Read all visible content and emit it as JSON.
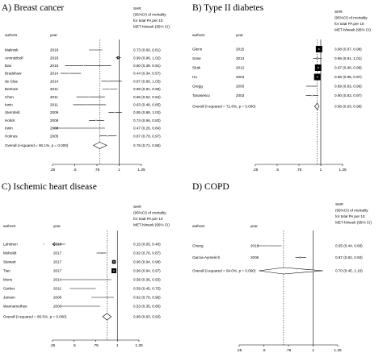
{
  "figure": {
    "panels": [
      {
        "title": "A) Breast cancer",
        "header": {
          "col1": "authors",
          "col2": "year",
          "shr": [
            "SHR",
            "(95%CI) of mortality",
            "for total PA per 10",
            "MET-h/week (95% CI)"
          ]
        },
        "rows": [
          {
            "author": "Malinisk",
            "year": "2018",
            "est": "0.73 (0.66, 0.81)"
          },
          {
            "author": "Ammitzboll",
            "year": "2018",
            "est": "0.99 (0.96, 1.02)"
          },
          {
            "author": "Bao",
            "year": "2015",
            "est": "0.60 (0.39, 0.91)"
          },
          {
            "author": "Bradshaw",
            "year": "2014",
            "est": "0.44 (0.34, 0.57)"
          },
          {
            "author": "de Glas",
            "year": "2014",
            "est": "0.87 (0.80, 1.03)"
          },
          {
            "author": "Bertram",
            "year": "2011",
            "est": "0.89 (0.81, 0.98)"
          },
          {
            "author": "Chen",
            "year": "2011",
            "est": "0.66 (0.52, 0.84)"
          },
          {
            "author": "Irwin",
            "year": "2011",
            "est": "0.63 (0.48, 0.85)"
          },
          {
            "author": "Sternfeld",
            "year": "2009",
            "est": "0.95 (0.88, 1.03)"
          },
          {
            "author": "Holick",
            "year": "2008",
            "est": "0.74 (0.66, 0.83)"
          },
          {
            "author": "Irwin",
            "year": "2008",
            "est": "0.47 (0.26, 0.84)"
          },
          {
            "author": "Holmes",
            "year": "2005",
            "est": "0.87 (0.78, 0.97)"
          }
        ],
        "overall": {
          "label": "Overall  (I-squared = 90.1%, p = 0.000)",
          "est": "0.78 (0.71, 0.86)"
        },
        "axis_ticks": [
          ".25",
          ".5",
          ".75",
          "1",
          "1.25"
        ]
      },
      {
        "title": "B) Type II diabetes",
        "header": {
          "col1": "authors",
          "col2": "year",
          "shr": [
            "SHR",
            "(95%CI) of mortality",
            "for total PA per 10",
            "MET-h/week (95% CI)"
          ]
        },
        "rows": [
          {
            "author": "Glenn",
            "year": "2015",
            "est": "0.98 (0.97, 0.98)"
          },
          {
            "author": "Sone",
            "year": "2013",
            "est": "0.96 (0.91, 1.01)"
          },
          {
            "author": "Sluik",
            "year": "2012",
            "est": "0.97 (0.96, 0.98)"
          },
          {
            "author": "Hu",
            "year": "2004",
            "est": "0.96 (0.95, 0.97)"
          },
          {
            "author": "Gregg",
            "year": "2003",
            "est": "0.89 (0.83, 0.96)"
          },
          {
            "author": "Tanasescu",
            "year": "2003",
            "est": "0.90 (0.83, 0.97)"
          }
        ],
        "overall": {
          "label": "Overall  (I-squared = 71.8%, p = 0.000)",
          "est": "0.96 (0.93, 0.98)"
        },
        "axis_ticks": [
          ".25",
          ".5",
          ".75",
          "1",
          "1.25"
        ]
      },
      {
        "title": "C) Ischemic heart disease",
        "header": {
          "col1": "authors",
          "col2": "year",
          "shr": [
            "SHR",
            "(95%CI) of mortality",
            "for total PA per 10",
            "MET-h/week (95% CI)"
          ]
        },
        "rows": [
          {
            "author": "Lahtinen",
            "year": "2018",
            "est": "0.15 (0.05, 0.40)"
          },
          {
            "author": "Moholdt",
            "year": "2017",
            "est": "0.82 (0.76, 0.87)"
          },
          {
            "author": "Stewart",
            "year": "2017",
            "est": "0.96 (0.94, 0.98)"
          },
          {
            "author": "Tian",
            "year": "2017",
            "est": "0.96 (0.94, 0.97)"
          },
          {
            "author": "Mons",
            "year": "2014",
            "est": "0.58 (0.36, 0.93)"
          },
          {
            "author": "Gerber",
            "year": "2011",
            "est": "0.59 (0.45, 0.75)"
          },
          {
            "author": "Jansen",
            "year": "2006",
            "est": "0.82 (0.70, 0.96)"
          },
          {
            "author": "Wannamethee",
            "year": "2000",
            "est": "0.53 (0.35, 0.80)"
          }
        ],
        "overall": {
          "label": "Overall  (I-squared = 86.5%, p = 0.000)",
          "est": "0.88 (0.83, 0.93)"
        },
        "axis_ticks": [
          ".25",
          ".5",
          ".75",
          "1",
          "1.25"
        ]
      },
      {
        "title": "D) COPD",
        "header": {
          "col1": "authors",
          "col2": "year",
          "shr": [
            "SHR",
            "(95%CI) of mortality",
            "for total PA per 10",
            "MET-h/week (95% CI)"
          ]
        },
        "rows": [
          {
            "author": "Cheng",
            "year": "2018",
            "est": "0.55 (0.44, 0.68)"
          },
          {
            "author": "Garcia-Aymerich",
            "year": "2006",
            "est": "0.87 (0.82, 0.93)"
          }
        ],
        "overall": {
          "label": "Overall  (I-squared = 94.0%, p = 0.000)",
          "est": "0.70 (0.45, 1.10)"
        },
        "axis_ticks": [
          ".25",
          ".5",
          ".75",
          "1",
          "1.25"
        ]
      }
    ]
  },
  "chart_data": [
    {
      "type": "forest",
      "title": "A) Breast cancer",
      "xlim": [
        0.25,
        1.25
      ],
      "reference_line": 1,
      "series": [
        {
          "values": [
            {
              "study": "Malinisk 2018",
              "est": 0.73,
              "lo": 0.66,
              "hi": 0.81
            },
            {
              "study": "Ammitzboll 2018",
              "est": 0.99,
              "lo": 0.96,
              "hi": 1.02
            },
            {
              "study": "Bao 2015",
              "est": 0.6,
              "lo": 0.39,
              "hi": 0.91
            },
            {
              "study": "Bradshaw 2014",
              "est": 0.44,
              "lo": 0.34,
              "hi": 0.57
            },
            {
              "study": "de Glas 2014",
              "est": 0.87,
              "lo": 0.8,
              "hi": 1.03
            },
            {
              "study": "Bertram 2011",
              "est": 0.89,
              "lo": 0.81,
              "hi": 0.98
            },
            {
              "study": "Chen 2011",
              "est": 0.66,
              "lo": 0.52,
              "hi": 0.84
            },
            {
              "study": "Irwin 2011",
              "est": 0.63,
              "lo": 0.48,
              "hi": 0.85
            },
            {
              "study": "Sternfeld 2009",
              "est": 0.95,
              "lo": 0.88,
              "hi": 1.03
            },
            {
              "study": "Holick 2008",
              "est": 0.74,
              "lo": 0.66,
              "hi": 0.83
            },
            {
              "study": "Irwin 2008",
              "est": 0.47,
              "lo": 0.26,
              "hi": 0.84
            },
            {
              "study": "Holmes 2005",
              "est": 0.87,
              "lo": 0.78,
              "hi": 0.97
            }
          ]
        }
      ],
      "overall": {
        "est": 0.78,
        "lo": 0.71,
        "hi": 0.86
      }
    },
    {
      "type": "forest",
      "title": "B) Type II diabetes",
      "xlim": [
        0.25,
        1.25
      ],
      "reference_line": 1,
      "series": [
        {
          "values": [
            {
              "study": "Glenn 2015",
              "est": 0.98,
              "lo": 0.97,
              "hi": 0.98
            },
            {
              "study": "Sone 2013",
              "est": 0.96,
              "lo": 0.91,
              "hi": 1.01
            },
            {
              "study": "Sluik 2012",
              "est": 0.97,
              "lo": 0.96,
              "hi": 0.98
            },
            {
              "study": "Hu 2004",
              "est": 0.96,
              "lo": 0.95,
              "hi": 0.97
            },
            {
              "study": "Gregg 2003",
              "est": 0.89,
              "lo": 0.83,
              "hi": 0.96
            },
            {
              "study": "Tanasescu 2003",
              "est": 0.9,
              "lo": 0.83,
              "hi": 0.97
            }
          ]
        }
      ],
      "overall": {
        "est": 0.96,
        "lo": 0.93,
        "hi": 0.98
      }
    },
    {
      "type": "forest",
      "title": "C) Ischemic heart disease",
      "xlim": [
        0.25,
        1.25
      ],
      "reference_line": 1,
      "series": [
        {
          "values": [
            {
              "study": "Lahtinen 2018",
              "est": 0.15,
              "lo": 0.05,
              "hi": 0.4
            },
            {
              "study": "Moholdt 2017",
              "est": 0.82,
              "lo": 0.76,
              "hi": 0.87
            },
            {
              "study": "Stewart 2017",
              "est": 0.96,
              "lo": 0.94,
              "hi": 0.98
            },
            {
              "study": "Tian 2017",
              "est": 0.96,
              "lo": 0.94,
              "hi": 0.97
            },
            {
              "study": "Mons 2014",
              "est": 0.58,
              "lo": 0.36,
              "hi": 0.93
            },
            {
              "study": "Gerber 2011",
              "est": 0.59,
              "lo": 0.45,
              "hi": 0.75
            },
            {
              "study": "Jansen 2006",
              "est": 0.82,
              "lo": 0.7,
              "hi": 0.96
            },
            {
              "study": "Wannamethee 2000",
              "est": 0.53,
              "lo": 0.35,
              "hi": 0.8
            }
          ]
        }
      ],
      "overall": {
        "est": 0.88,
        "lo": 0.83,
        "hi": 0.93
      }
    },
    {
      "type": "forest",
      "title": "D) COPD",
      "xlim": [
        0.25,
        1.25
      ],
      "reference_line": 1,
      "series": [
        {
          "values": [
            {
              "study": "Cheng 2018",
              "est": 0.55,
              "lo": 0.44,
              "hi": 0.68
            },
            {
              "study": "Garcia-Aymerich 2006",
              "est": 0.87,
              "lo": 0.82,
              "hi": 0.93
            }
          ]
        }
      ],
      "overall": {
        "est": 0.7,
        "lo": 0.45,
        "hi": 1.1
      }
    }
  ]
}
